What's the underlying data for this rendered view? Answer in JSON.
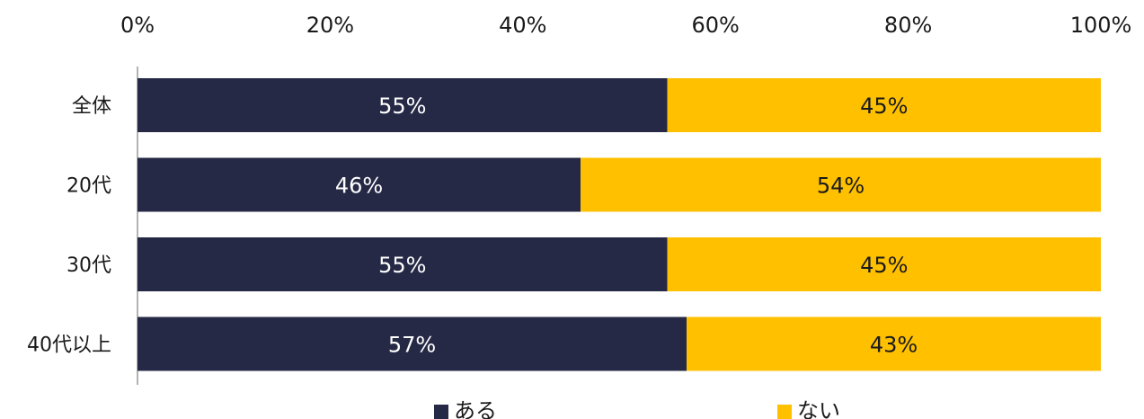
{
  "chart_data": {
    "type": "bar",
    "orientation": "horizontal",
    "stacked": true,
    "categories": [
      "全体",
      "20代",
      "30代",
      "40代以上"
    ],
    "series": [
      {
        "name": "ある",
        "values": [
          55,
          46,
          55,
          57
        ],
        "labels": [
          "55%",
          "46%",
          "55%",
          "57%"
        ],
        "color": "#252945",
        "label_color": "#ffffff"
      },
      {
        "name": "ない",
        "values": [
          45,
          54,
          45,
          43
        ],
        "labels": [
          "45%",
          "54%",
          "45%",
          "43%"
        ],
        "color": "#ffc000",
        "label_color": "#1a1a1a"
      }
    ],
    "xlim": [
      0,
      100
    ],
    "x_ticks": [
      "0%",
      "20%",
      "40%",
      "60%",
      "80%",
      "100%"
    ],
    "axis_position": "top",
    "grid": false,
    "legend_position": "bottom"
  }
}
